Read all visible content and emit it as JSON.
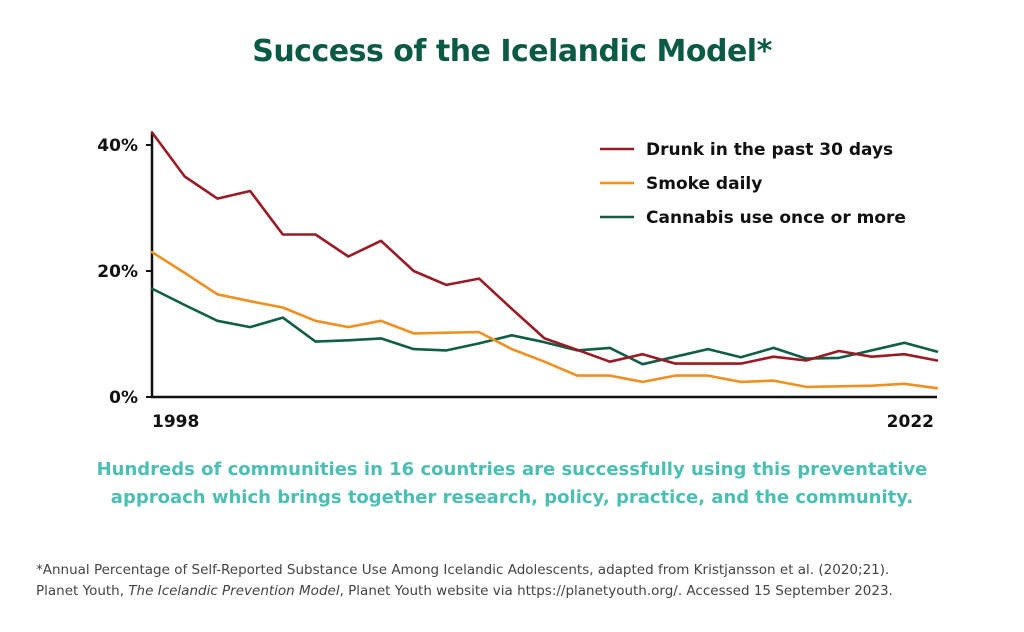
{
  "title": "Success of the Icelandic Model*",
  "subtitle_lines": [
    "Hundreds of communities in 16 countries are successfully using this preventative",
    "approach which brings together research, policy, practice, and the community."
  ],
  "footnote": {
    "line1": "*Annual Percentage of Self-Reported Substance Use Among Icelandic Adolescents, adapted from Kristjansson et al. (2020;21).",
    "line2_prefix": "Planet Youth, ",
    "line2_italic": "The Icelandic Prevention Model",
    "line2_suffix": ", Planet Youth website via https://planetyouth.org/. Accessed 15 September 2023."
  },
  "chart_data": {
    "type": "line",
    "title": "Success of the Icelandic Model*",
    "x": [
      1998,
      1999,
      2000,
      2001,
      2002,
      2003,
      2004,
      2005,
      2006,
      2007,
      2008,
      2009,
      2010,
      2011,
      2012,
      2013,
      2014,
      2015,
      2016,
      2017,
      2018,
      2019,
      2020,
      2021,
      2022
    ],
    "x_tick_labels": [
      "1998",
      "2022"
    ],
    "y_ticks": [
      {
        "value": 0,
        "label": "0%"
      },
      {
        "value": 20,
        "label": "20%"
      },
      {
        "value": 40,
        "label": "40%"
      }
    ],
    "ylim": [
      0,
      42
    ],
    "grid": false,
    "legend_position": "top-right",
    "series": [
      {
        "name": "Drunk in the past 30 days",
        "color": "#9b1b24",
        "values": [
          42,
          35,
          31.5,
          32.7,
          25.8,
          25.8,
          22.3,
          24.8,
          20,
          17.8,
          18.8,
          14,
          9.3,
          7.5,
          5.6,
          6.8,
          5.3,
          5.3,
          5.3,
          6.4,
          5.8,
          7.3,
          6.4,
          6.8,
          5.8
        ]
      },
      {
        "name": "Smoke daily",
        "color": "#ef9021",
        "values": [
          23,
          19.7,
          16.3,
          15.2,
          14.2,
          12.1,
          11.1,
          12.1,
          10.1,
          10.2,
          10.3,
          7.6,
          5.6,
          3.4,
          3.4,
          2.4,
          3.4,
          3.4,
          2.4,
          2.6,
          1.6,
          1.7,
          1.8,
          2.1,
          1.4
        ]
      },
      {
        "name": "Cannabis use once or more",
        "color": "#0f5f48",
        "values": [
          17.2,
          14.6,
          12.1,
          11.1,
          12.6,
          8.8,
          9.0,
          9.3,
          7.6,
          7.4,
          8.5,
          9.8,
          8.7,
          7.4,
          7.8,
          5.2,
          6.4,
          7.6,
          6.3,
          7.8,
          6.1,
          6.2,
          7.4,
          8.6,
          7.2
        ]
      }
    ]
  }
}
